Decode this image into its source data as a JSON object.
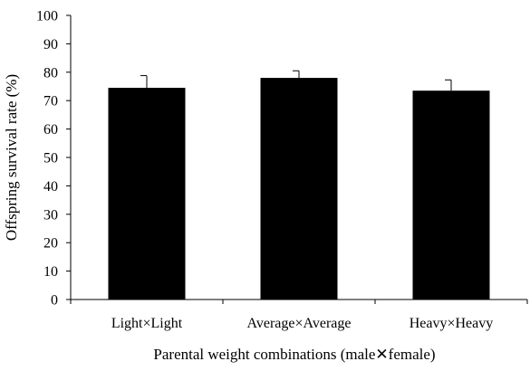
{
  "chart_data": {
    "type": "bar",
    "title": "",
    "xlabel": "Parental weight combinations (male✕female)",
    "ylabel": "Offspring  survival rate (%)",
    "categories": [
      "Light×Light",
      "Average×Average",
      "Heavy×Heavy"
    ],
    "values": [
      74.5,
      78.0,
      73.5
    ],
    "errors": [
      4.3,
      2.5,
      3.8
    ],
    "ylim": [
      0,
      100
    ],
    "yticks": [
      0,
      10,
      20,
      30,
      40,
      50,
      60,
      70,
      80,
      90,
      100
    ],
    "bar_color": "#000000",
    "grid": false,
    "legend": "none"
  }
}
